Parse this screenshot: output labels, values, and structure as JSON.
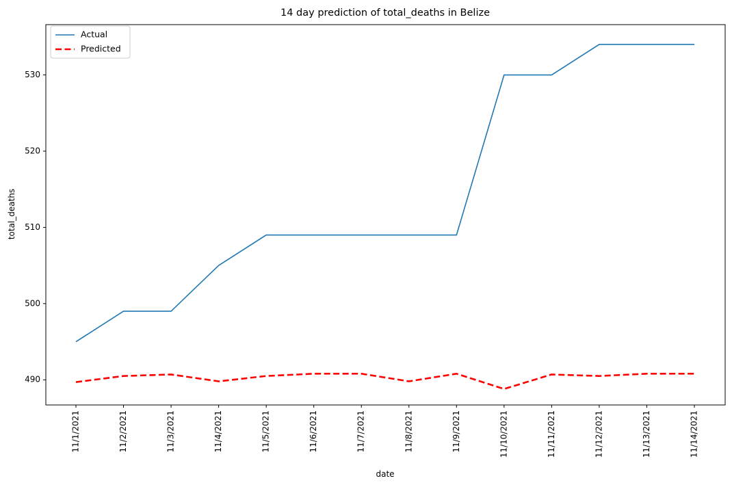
{
  "chart_data": {
    "type": "line",
    "title": "14 day prediction of total_deaths in Belize",
    "xlabel": "date",
    "ylabel": "total_deaths",
    "categories": [
      "11/1/2021",
      "11/2/2021",
      "11/3/2021",
      "11/4/2021",
      "11/5/2021",
      "11/6/2021",
      "11/7/2021",
      "11/8/2021",
      "11/9/2021",
      "11/10/2021",
      "11/11/2021",
      "11/12/2021",
      "11/13/2021",
      "11/14/2021"
    ],
    "yticks": [
      490,
      500,
      510,
      520,
      530
    ],
    "ylim": [
      486.7,
      536.6
    ],
    "grid": false,
    "legend_position": "top-left",
    "series": [
      {
        "name": "Actual",
        "color": "#1f77b4",
        "style": "solid",
        "values": [
          495,
          499,
          499,
          505,
          509,
          509,
          509,
          509,
          509,
          530,
          530,
          534,
          534,
          534
        ]
      },
      {
        "name": "Predicted",
        "color": "#ff0000",
        "style": "dashed",
        "values": [
          489.7,
          490.5,
          490.7,
          489.8,
          490.5,
          490.8,
          490.8,
          489.8,
          490.8,
          488.8,
          490.7,
          490.5,
          490.8,
          490.8
        ]
      }
    ]
  }
}
